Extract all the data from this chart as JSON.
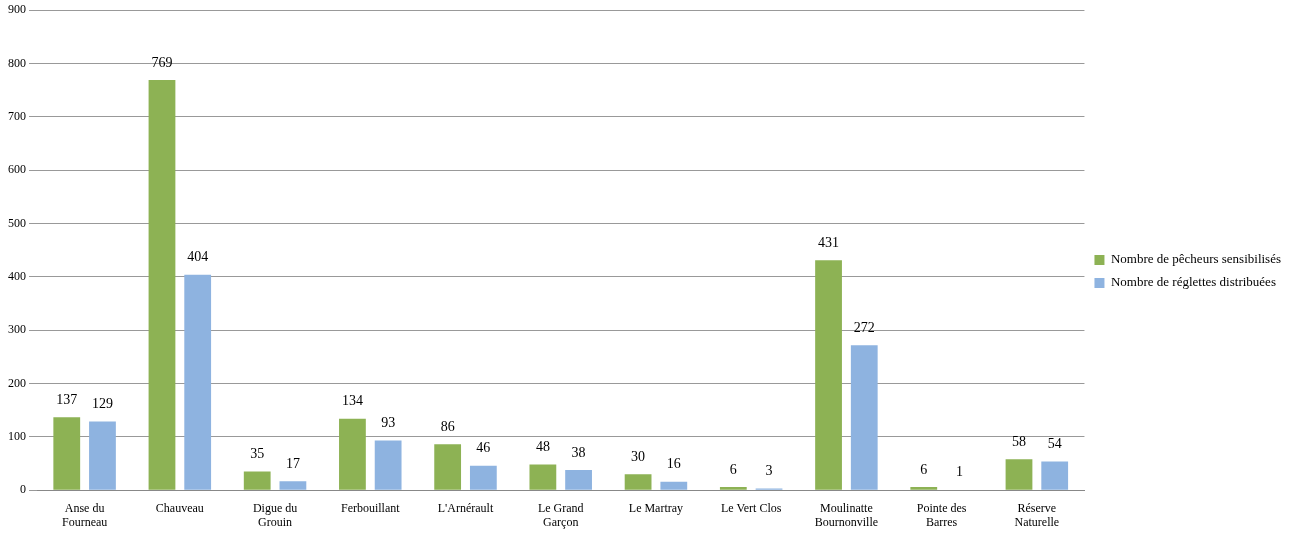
{
  "chart_data": {
    "type": "bar",
    "categories": [
      "Anse du Fourneau",
      "Chauveau",
      "Digue du Grouin",
      "Ferbouillant",
      "L'Arnérault",
      "Le Grand Garçon",
      "Le Martray",
      "Le Vert Clos",
      "Moulinatte Bournonville",
      "Pointe des Barres",
      "Réserve Naturelle"
    ],
    "series": [
      {
        "name": "Nombre de pêcheurs sensibilisés",
        "color": "#8db254",
        "values": [
          137,
          769,
          35,
          134,
          86,
          48,
          30,
          6,
          431,
          6,
          58
        ]
      },
      {
        "name": "Nombre de réglettes distribuées",
        "color": "#8eb3e0",
        "values": [
          129,
          404,
          17,
          93,
          46,
          38,
          16,
          3,
          272,
          1,
          54
        ]
      }
    ],
    "ylim": [
      0,
      900
    ],
    "yticks": [
      0,
      100,
      200,
      300,
      400,
      500,
      600,
      700,
      800,
      900
    ],
    "grid": "y",
    "legend": "right",
    "data_labels": true
  }
}
